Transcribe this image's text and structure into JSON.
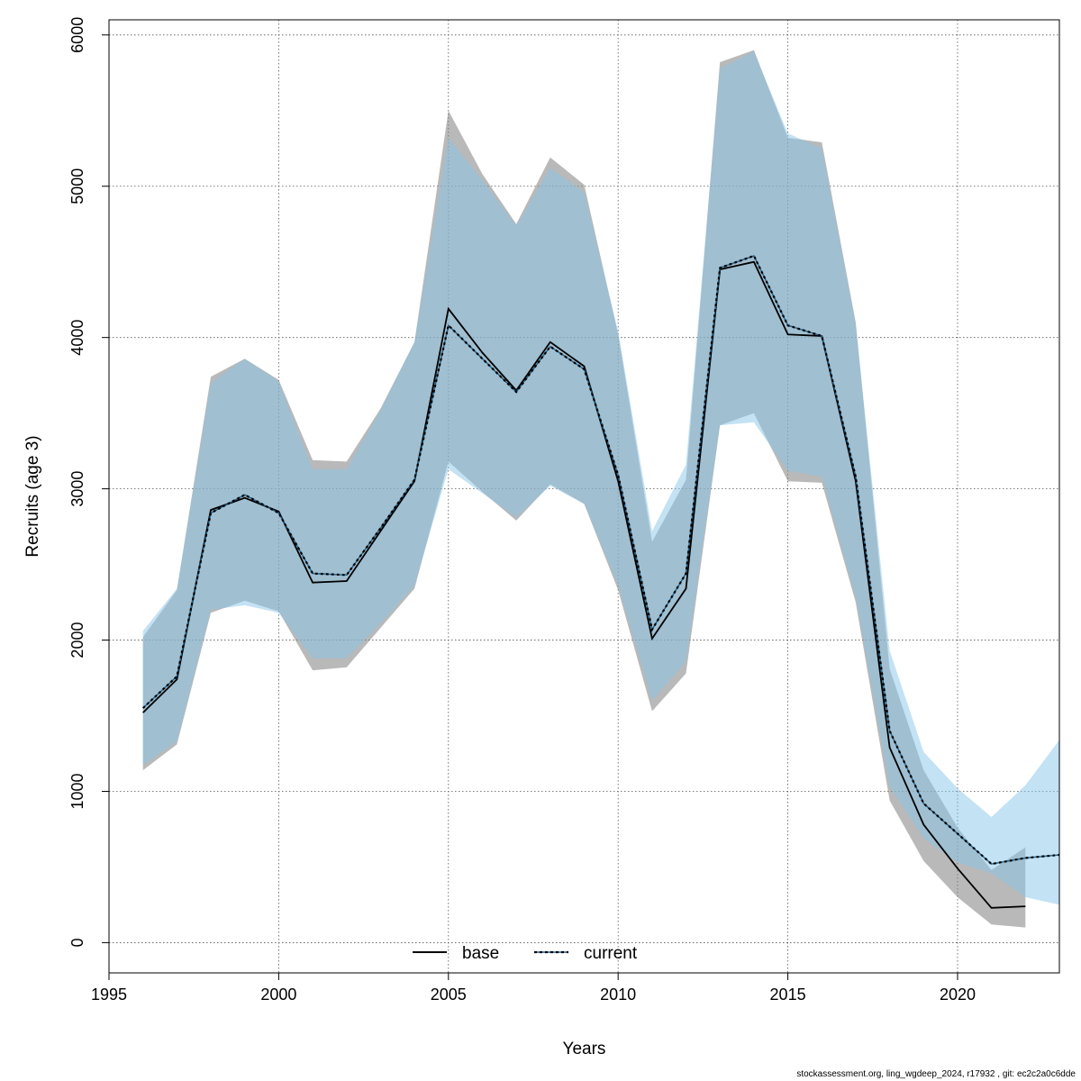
{
  "chart_data": {
    "type": "line",
    "title": "",
    "xlabel": "Years",
    "ylabel": "Recruits (age 3)",
    "xlim": [
      1995,
      2023
    ],
    "ylim": [
      -200,
      6100
    ],
    "xticks": [
      1995,
      2000,
      2005,
      2010,
      2015,
      2020
    ],
    "yticks": [
      0,
      1000,
      2000,
      3000,
      4000,
      5000,
      6000
    ],
    "grid": true,
    "legend_position": "bottom-center",
    "series": [
      {
        "name": "base",
        "line_color": "#000000",
        "band_color": "#808080",
        "line_style": "solid",
        "x": [
          1996,
          1997,
          1998,
          1999,
          2000,
          2001,
          2002,
          2003,
          2004,
          2005,
          2006,
          2007,
          2008,
          2009,
          2010,
          2011,
          2012,
          2013,
          2014,
          2015,
          2016,
          2017,
          2018,
          2019,
          2020,
          2021,
          2022
        ],
        "values": [
          1520,
          1740,
          2860,
          2940,
          2850,
          2380,
          2390,
          2720,
          3050,
          4190,
          3900,
          3650,
          3970,
          3810,
          3050,
          2010,
          2340,
          4450,
          4500,
          4020,
          4010,
          3050,
          1290,
          780,
          490,
          230,
          240
        ],
        "lower": [
          1140,
          1310,
          2180,
          2260,
          2190,
          1800,
          1820,
          2080,
          2340,
          3180,
          2980,
          2790,
          3030,
          2900,
          2330,
          1530,
          1780,
          3420,
          3500,
          3050,
          3040,
          2250,
          940,
          540,
          300,
          120,
          100
        ],
        "upper": [
          2020,
          2330,
          3740,
          3860,
          3720,
          3190,
          3180,
          3530,
          3970,
          5500,
          5080,
          4750,
          5190,
          5010,
          4020,
          2650,
          3060,
          5820,
          5900,
          5320,
          5290,
          4100,
          1810,
          1140,
          760,
          480,
          630
        ]
      },
      {
        "name": "current",
        "line_color": "#1a5c88",
        "band_color": "#87c5ea",
        "line_style": "dashed",
        "x": [
          1996,
          1997,
          1998,
          1999,
          2000,
          2001,
          2002,
          2003,
          2004,
          2005,
          2006,
          2007,
          2008,
          2009,
          2010,
          2011,
          2012,
          2013,
          2014,
          2015,
          2016,
          2017,
          2018,
          2019,
          2020,
          2021,
          2022,
          2023
        ],
        "values": [
          1550,
          1760,
          2840,
          2960,
          2840,
          2440,
          2430,
          2740,
          3060,
          4080,
          3860,
          3640,
          3940,
          3790,
          3090,
          2070,
          2440,
          4460,
          4540,
          4080,
          4010,
          3080,
          1400,
          920,
          720,
          520,
          560,
          580
        ],
        "lower": [
          1170,
          1330,
          2200,
          2230,
          2180,
          1880,
          1880,
          2110,
          2360,
          3130,
          2970,
          2810,
          3020,
          2900,
          2360,
          1600,
          1860,
          3420,
          3440,
          3120,
          3080,
          2280,
          1030,
          690,
          530,
          460,
          300,
          250
        ],
        "upper": [
          2060,
          2340,
          3700,
          3860,
          3710,
          3130,
          3130,
          3520,
          3970,
          5320,
          5040,
          4740,
          5120,
          4960,
          4040,
          2720,
          3160,
          5780,
          5890,
          5350,
          5250,
          4090,
          1930,
          1260,
          1020,
          830,
          1040,
          1340
        ]
      }
    ]
  },
  "footer": "stockassessment.org, ling_wgdeep_2024, r17932 , git: ec2c2a0c6dde"
}
